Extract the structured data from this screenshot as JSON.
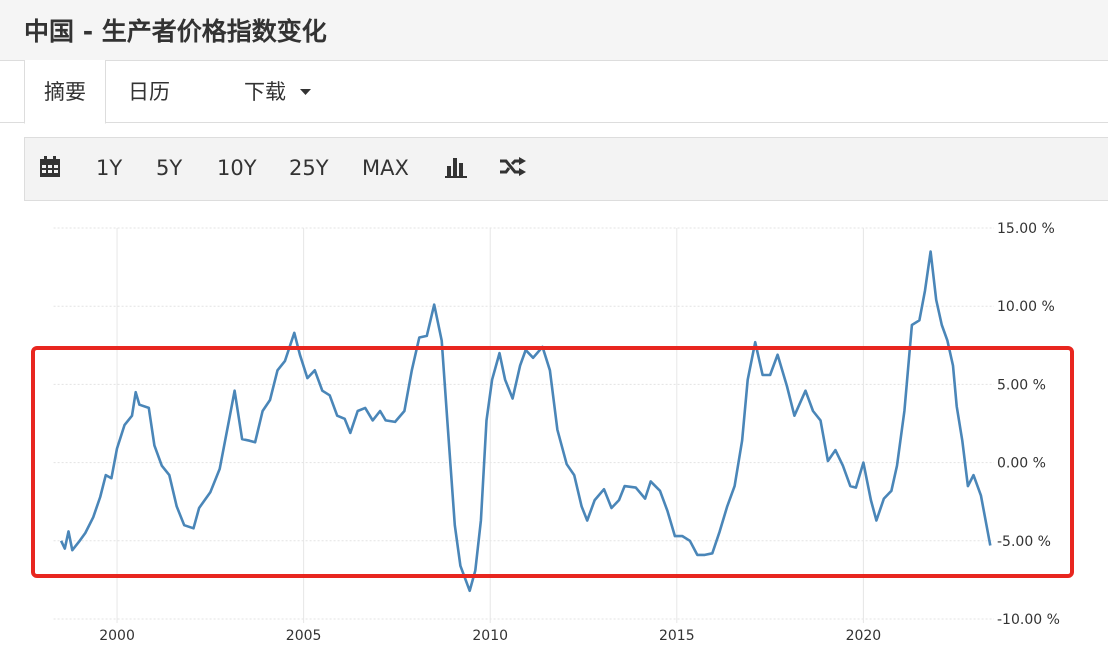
{
  "header": {
    "title": "中国 - 生产者价格指数变化"
  },
  "tabs": [
    "摘要",
    "日历",
    "下载"
  ],
  "toolbar": {
    "ranges": [
      "1Y",
      "5Y",
      "10Y",
      "25Y",
      "MAX"
    ]
  },
  "chart_data": {
    "type": "line",
    "color": "#4a86b8",
    "x": [
      1998.5,
      1998.6,
      1998.7,
      1998.8,
      1999.0,
      1999.15,
      1999.36,
      1999.55,
      1999.7,
      1999.85,
      2000.0,
      2000.2,
      2000.4,
      2000.5,
      2000.6,
      2000.85,
      2001.0,
      2001.2,
      2001.4,
      2001.6,
      2001.8,
      2002.05,
      2002.2,
      2002.5,
      2002.75,
      2003.0,
      2003.15,
      2003.35,
      2003.55,
      2003.7,
      2003.9,
      2004.1,
      2004.3,
      2004.5,
      2004.75,
      2004.9,
      2005.1,
      2005.3,
      2005.5,
      2005.7,
      2005.9,
      2006.1,
      2006.25,
      2006.45,
      2006.65,
      2006.85,
      2007.05,
      2007.2,
      2007.45,
      2007.7,
      2007.9,
      2008.1,
      2008.3,
      2008.5,
      2008.7,
      2008.85,
      2009.05,
      2009.2,
      2009.45,
      2009.6,
      2009.75,
      2009.9,
      2010.05,
      2010.25,
      2010.4,
      2010.6,
      2010.8,
      2010.95,
      2011.15,
      2011.4,
      2011.6,
      2011.8,
      2012.05,
      2012.25,
      2012.45,
      2012.6,
      2012.8,
      2013.05,
      2013.25,
      2013.45,
      2013.6,
      2013.9,
      2014.15,
      2014.3,
      2014.55,
      2014.75,
      2014.95,
      2015.15,
      2015.35,
      2015.55,
      2015.75,
      2015.95,
      2016.15,
      2016.35,
      2016.55,
      2016.75,
      2016.9,
      2017.1,
      2017.3,
      2017.5,
      2017.7,
      2017.95,
      2018.15,
      2018.45,
      2018.65,
      2018.85,
      2019.05,
      2019.25,
      2019.45,
      2019.65,
      2019.8,
      2020.0,
      2020.2,
      2020.35,
      2020.55,
      2020.75,
      2020.9,
      2021.1,
      2021.3,
      2021.5,
      2021.65,
      2021.8,
      2021.95,
      2022.1,
      2022.25,
      2022.4,
      2022.5,
      2022.65,
      2022.8,
      2022.95,
      2023.15,
      2023.4
    ],
    "values": [
      -5.0,
      -5.5,
      -4.4,
      -5.6,
      -5.0,
      -4.5,
      -3.5,
      -2.2,
      -0.8,
      -1.0,
      0.9,
      2.4,
      3.0,
      4.5,
      3.7,
      3.5,
      1.1,
      -0.2,
      -0.8,
      -2.8,
      -4.0,
      -4.2,
      -2.9,
      -1.9,
      -0.4,
      2.7,
      4.6,
      1.5,
      1.4,
      1.3,
      3.3,
      4.0,
      5.9,
      6.5,
      8.3,
      6.9,
      5.4,
      5.9,
      4.6,
      4.3,
      3.0,
      2.8,
      1.9,
      3.3,
      3.5,
      2.7,
      3.3,
      2.7,
      2.6,
      3.3,
      5.9,
      8.0,
      8.1,
      10.1,
      7.8,
      2.7,
      -4.0,
      -6.6,
      -8.2,
      -6.9,
      -3.7,
      2.7,
      5.3,
      7.0,
      5.3,
      4.1,
      6.2,
      7.2,
      6.7,
      7.4,
      5.9,
      2.1,
      -0.1,
      -0.8,
      -2.8,
      -3.7,
      -2.4,
      -1.7,
      -2.9,
      -2.4,
      -1.5,
      -1.6,
      -2.3,
      -1.2,
      -1.8,
      -3.1,
      -4.7,
      -4.7,
      -5.0,
      -5.9,
      -5.9,
      -5.8,
      -4.4,
      -2.8,
      -1.5,
      1.4,
      5.3,
      7.7,
      5.6,
      5.6,
      6.9,
      4.9,
      3.0,
      4.6,
      3.3,
      2.7,
      0.1,
      0.8,
      -0.2,
      -1.5,
      -1.6,
      0.0,
      -2.4,
      -3.7,
      -2.3,
      -1.8,
      -0.2,
      3.3,
      8.8,
      9.1,
      11.0,
      13.5,
      10.4,
      8.8,
      7.8,
      6.2,
      3.6,
      1.4,
      -1.5,
      -0.8,
      -2.1,
      -5.3
    ],
    "xlim": [
      1998.3,
      2023.5
    ],
    "xticks": [
      2000,
      2005,
      2010,
      2015,
      2020
    ],
    "ylim": [
      -10,
      15
    ],
    "yticks": [
      {
        "value": 15,
        "label": "15.00 %"
      },
      {
        "value": 10,
        "label": "10.00 %"
      },
      {
        "value": 5,
        "label": "5.00 %"
      },
      {
        "value": 0,
        "label": "0.00 %"
      },
      {
        "value": -5,
        "label": "-5.00 %"
      },
      {
        "value": -10,
        "label": "-10.00 %"
      }
    ],
    "grid": true
  }
}
